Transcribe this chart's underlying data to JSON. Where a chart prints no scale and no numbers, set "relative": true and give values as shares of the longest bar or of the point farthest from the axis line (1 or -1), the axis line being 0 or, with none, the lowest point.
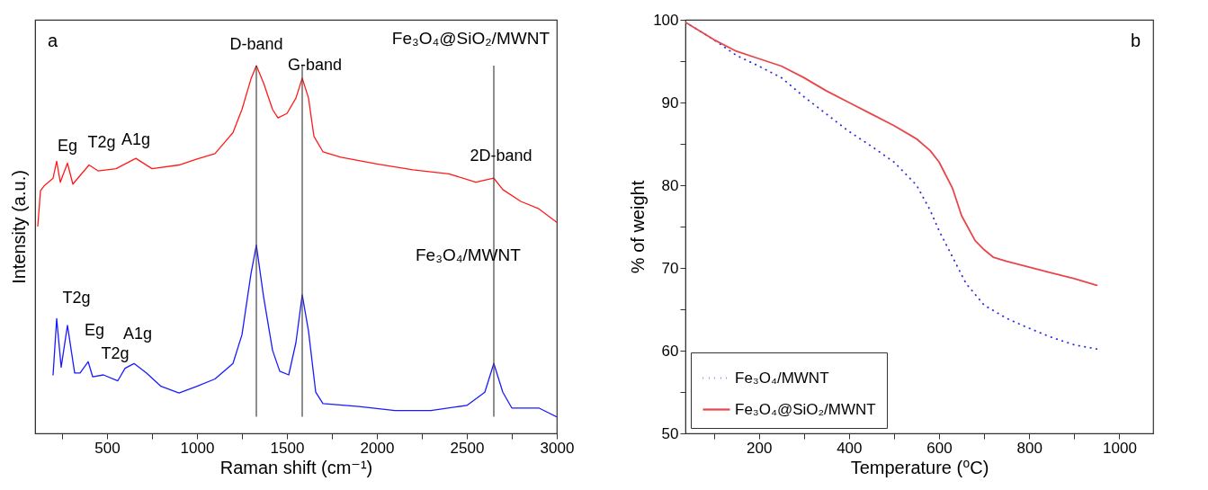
{
  "chart_data": [
    {
      "type": "line",
      "xlabel": "Raman shift (cm⁻¹)",
      "ylabel": "Intensity (a.u.)",
      "relative": true,
      "tick_labels": "x",
      "xlim": [
        100,
        3000
      ],
      "xticks": [
        {
          "value": 250,
          "label": null
        },
        500,
        {
          "value": 750,
          "label": null
        },
        1000,
        {
          "value": 1250,
          "label": null
        },
        1500,
        {
          "value": 1750,
          "label": null
        },
        2000,
        {
          "value": 2250,
          "label": null
        },
        2500,
        {
          "value": 2750,
          "label": null
        },
        3000
      ],
      "annotations": [
        "a",
        "Fe₃O₄@SiO₂/MWNT",
        "Fe₃O₄/MWNT",
        {
          "text": "D-band",
          "x": 1330,
          "y": 1
        },
        {
          "text": "G-band",
          "x": 1585,
          "y": 0.966
        },
        {
          "text": "2D-band",
          "x": 2650,
          "y": 0.694
        },
        {
          "text": "Eg",
          "x": 220,
          "y": 0.74
        },
        {
          "text": "T2g",
          "x": 280,
          "y": 0.735
        },
        {
          "text": "A1g",
          "x": 660,
          "y": 0.748
        },
        {
          "text": "T2g",
          "x": 220,
          "y": 0.312
        },
        {
          "text": "Eg",
          "x": 280,
          "y": 0.294
        },
        {
          "text": "T2g",
          "x": 395,
          "y": 0.195
        },
        {
          "text": "A1g",
          "x": 650,
          "y": 0.19
        }
      ],
      "ref_lines": [
        {
          "axis": "x",
          "value": 1330,
          "color": "#444444"
        },
        {
          "axis": "x",
          "value": 1585,
          "color": "#444444"
        },
        {
          "axis": "x",
          "value": 2650,
          "color": "#444444"
        }
      ],
      "series": [
        {
          "color": "#ff1a1a",
          "x": [
            115,
            130,
            150,
            200,
            220,
            240,
            280,
            310,
            400,
            450,
            550,
            660,
            750,
            900,
            1000,
            1100,
            1200,
            1250,
            1300,
            1330,
            1370,
            1420,
            1450,
            1500,
            1550,
            1585,
            1620,
            1650,
            1700,
            1800,
            2000,
            2200,
            2400,
            2550,
            2650,
            2700,
            2800,
            2900,
            3000
          ],
          "values": [
            0.564,
            0.66,
            0.673,
            0.694,
            0.74,
            0.683,
            0.735,
            0.678,
            0.73,
            0.714,
            0.72,
            0.748,
            0.72,
            0.73,
            0.746,
            0.761,
            0.818,
            0.881,
            0.964,
            1,
            0.953,
            0.881,
            0.858,
            0.87,
            0.912,
            0.966,
            0.912,
            0.808,
            0.766,
            0.751,
            0.733,
            0.717,
            0.706,
            0.683,
            0.694,
            0.663,
            0.631,
            0.611,
            0.574
          ]
        },
        {
          "color": "#1a1aff",
          "x": [
            200,
            220,
            245,
            280,
            320,
            350,
            395,
            420,
            480,
            560,
            600,
            650,
            720,
            800,
            900,
            1000,
            1100,
            1200,
            1250,
            1300,
            1330,
            1370,
            1420,
            1460,
            1510,
            1550,
            1585,
            1620,
            1660,
            1700,
            1900,
            2100,
            2300,
            2500,
            2600,
            2650,
            2700,
            2750,
            2900,
            3000
          ],
          "values": [
            0.159,
            0.312,
            0.18,
            0.294,
            0.164,
            0.164,
            0.195,
            0.154,
            0.159,
            0.143,
            0.177,
            0.19,
            0.164,
            0.128,
            0.11,
            0.128,
            0.148,
            0.19,
            0.268,
            0.434,
            0.512,
            0.372,
            0.226,
            0.169,
            0.159,
            0.247,
            0.377,
            0.278,
            0.112,
            0.081,
            0.073,
            0.062,
            0.062,
            0.076,
            0.112,
            0.19,
            0.112,
            0.069,
            0.069,
            0.045
          ]
        }
      ]
    },
    {
      "type": "line",
      "xlabel": "Temperature (⁰C)",
      "ylabel": "% of weight",
      "xlim": [
        37,
        1075
      ],
      "ylim": [
        50,
        100
      ],
      "xticks": [
        {
          "value": 100,
          "label": null
        },
        200,
        {
          "value": 300,
          "label": null
        },
        400,
        {
          "value": 500,
          "label": null
        },
        600,
        {
          "value": 700,
          "label": null
        },
        800,
        {
          "value": 900,
          "label": null
        },
        1000
      ],
      "yticks": [
        50,
        {
          "value": 55,
          "label": null
        },
        60,
        {
          "value": 65,
          "label": null
        },
        70,
        {
          "value": 75,
          "label": null
        },
        80,
        {
          "value": 85,
          "label": null
        },
        90,
        {
          "value": 95,
          "label": null
        },
        100
      ],
      "legend": "bottom left",
      "annotations": [
        "b"
      ],
      "series": [
        {
          "name": "Fe₃O₄/MWNT",
          "color": "#2b2bdd",
          "line_style": "dotted",
          "x": [
            37,
            100,
            150,
            200,
            250,
            300,
            350,
            400,
            450,
            500,
            550,
            580,
            600,
            630,
            660,
            700,
            750,
            800,
            850,
            900,
            950
          ],
          "values": [
            99.7,
            97.6,
            95.7,
            94.4,
            93.0,
            90.7,
            88.6,
            86.5,
            84.7,
            82.8,
            80.0,
            77.0,
            74.5,
            71.3,
            68.1,
            65.5,
            63.9,
            62.7,
            61.6,
            60.7,
            60.2
          ]
        },
        {
          "name": "Fe₃O₄@SiO₂/MWNT",
          "color": "#e8474a",
          "line_style": "solid",
          "x": [
            37,
            100,
            150,
            200,
            250,
            300,
            350,
            400,
            450,
            500,
            550,
            580,
            600,
            630,
            650,
            680,
            700,
            720,
            750,
            800,
            850,
            900,
            950
          ],
          "values": [
            99.7,
            97.6,
            96.2,
            95.3,
            94.4,
            93.0,
            91.4,
            90.0,
            88.6,
            87.2,
            85.6,
            84.2,
            82.8,
            79.6,
            76.3,
            73.3,
            72.2,
            71.3,
            70.8,
            70.1,
            69.4,
            68.7,
            67.9
          ]
        }
      ]
    }
  ]
}
